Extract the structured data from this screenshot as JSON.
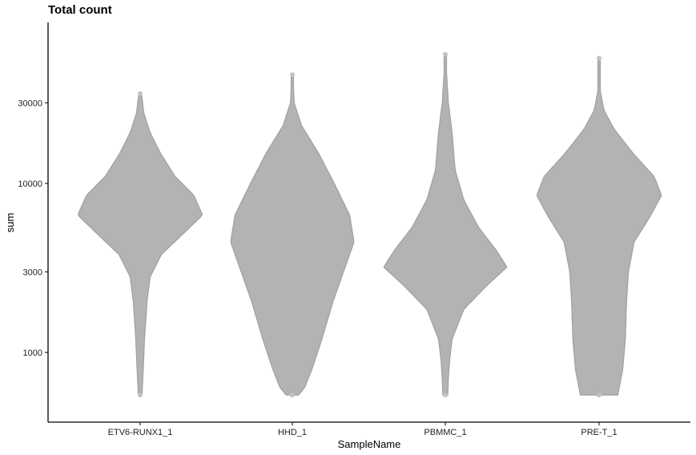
{
  "chart_data": {
    "type": "violin",
    "title": "Total count",
    "xlabel": "SampleName",
    "ylabel": "sum",
    "y_scale": "log10",
    "ylim": [
      500,
      80000
    ],
    "y_ticks": [
      1000,
      3000,
      10000,
      30000
    ],
    "y_tick_labels": [
      "1000",
      "3000",
      "10000",
      "30000"
    ],
    "categories": [
      "ETV6-RUNX1_1",
      "HHD_1",
      "PBMMC_1",
      "PRE-T_1"
    ],
    "grid": false,
    "legend": "none",
    "colors": {
      "violin": "#b3b3b3",
      "outline": "#a0a0a0",
      "points": "#c2c2c2",
      "axis": "#000000"
    },
    "series": [
      {
        "category": "ETV6-RUNX1_1",
        "min": 560,
        "max": 34000,
        "density": [
          [
            560,
            0.03
          ],
          [
            800,
            0.05
          ],
          [
            1200,
            0.07
          ],
          [
            2000,
            0.11
          ],
          [
            2800,
            0.16
          ],
          [
            3800,
            0.34
          ],
          [
            5000,
            0.68
          ],
          [
            6500,
            1.0
          ],
          [
            8500,
            0.86
          ],
          [
            11000,
            0.56
          ],
          [
            15000,
            0.33
          ],
          [
            20000,
            0.16
          ],
          [
            26000,
            0.06
          ],
          [
            34000,
            0.02
          ]
        ]
      },
      {
        "category": "HHD_1",
        "min": 560,
        "max": 44000,
        "density": [
          [
            560,
            0.1
          ],
          [
            620,
            0.2
          ],
          [
            800,
            0.32
          ],
          [
            1200,
            0.48
          ],
          [
            2000,
            0.66
          ],
          [
            3000,
            0.83
          ],
          [
            4500,
            1.0
          ],
          [
            6500,
            0.93
          ],
          [
            10000,
            0.68
          ],
          [
            15000,
            0.43
          ],
          [
            22000,
            0.15
          ],
          [
            30000,
            0.03
          ],
          [
            44000,
            0.01
          ]
        ]
      },
      {
        "category": "PBMMC_1",
        "min": 560,
        "max": 58000,
        "density": [
          [
            560,
            0.04
          ],
          [
            700,
            0.05
          ],
          [
            900,
            0.07
          ],
          [
            1200,
            0.11
          ],
          [
            1800,
            0.3
          ],
          [
            2500,
            0.68
          ],
          [
            3200,
            1.0
          ],
          [
            4000,
            0.83
          ],
          [
            5500,
            0.54
          ],
          [
            8000,
            0.3
          ],
          [
            12000,
            0.16
          ],
          [
            20000,
            0.11
          ],
          [
            30000,
            0.05
          ],
          [
            45000,
            0.02
          ],
          [
            58000,
            0.01
          ]
        ]
      },
      {
        "category": "PRE-T_1",
        "min": 560,
        "max": 55000,
        "density": [
          [
            560,
            0.3
          ],
          [
            800,
            0.38
          ],
          [
            1200,
            0.42
          ],
          [
            2000,
            0.44
          ],
          [
            3000,
            0.47
          ],
          [
            4500,
            0.56
          ],
          [
            6500,
            0.83
          ],
          [
            8500,
            1.0
          ],
          [
            11000,
            0.88
          ],
          [
            15000,
            0.55
          ],
          [
            21000,
            0.24
          ],
          [
            27000,
            0.08
          ],
          [
            35000,
            0.02
          ],
          [
            55000,
            0.01
          ]
        ]
      }
    ]
  }
}
